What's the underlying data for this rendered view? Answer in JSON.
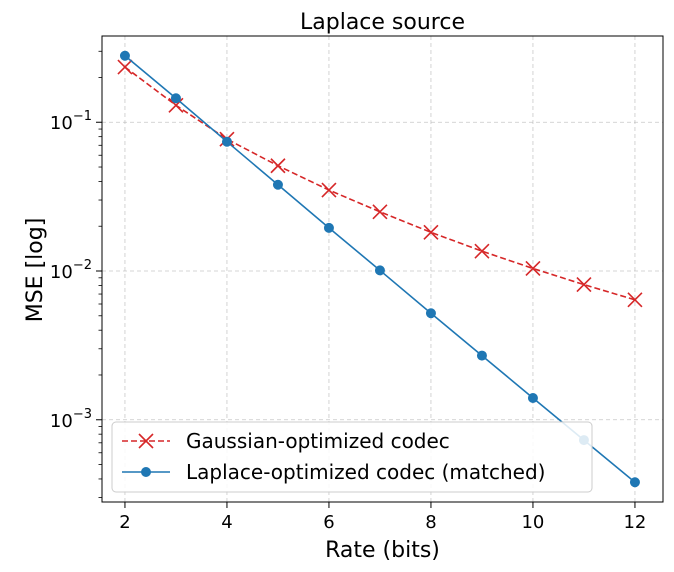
{
  "chart_data": {
    "type": "line",
    "title": "Laplace source",
    "xlabel": "Rate (bits)",
    "ylabel": "MSE [log]",
    "x": [
      2,
      3,
      4,
      5,
      6,
      7,
      8,
      9,
      10,
      11,
      12
    ],
    "xlim": [
      1.55,
      12.55
    ],
    "xticks": [
      2,
      4,
      6,
      8,
      10,
      12
    ],
    "yscale": "log",
    "ylim": [
      0.00028,
      0.38
    ],
    "yticks": [
      {
        "value": 0.001,
        "base": "10",
        "exp": "−3"
      },
      {
        "value": 0.01,
        "base": "10",
        "exp": "−2"
      },
      {
        "value": 0.1,
        "base": "10",
        "exp": "−1"
      }
    ],
    "grid": true,
    "legend_position": "lower-left",
    "series": [
      {
        "name": "Gaussian-optimized codec",
        "color": "#d62728",
        "linestyle": "dashed",
        "marker": "x",
        "values": [
          0.235,
          0.13,
          0.077,
          0.051,
          0.035,
          0.025,
          0.0182,
          0.0136,
          0.0104,
          0.0081,
          0.0064
        ]
      },
      {
        "name": "Laplace-optimized codec (matched)",
        "color": "#1f77b4",
        "linestyle": "solid",
        "marker": "o",
        "values": [
          0.28,
          0.145,
          0.074,
          0.038,
          0.0195,
          0.0101,
          0.0052,
          0.0027,
          0.0014,
          0.00073,
          0.00038
        ]
      }
    ]
  }
}
